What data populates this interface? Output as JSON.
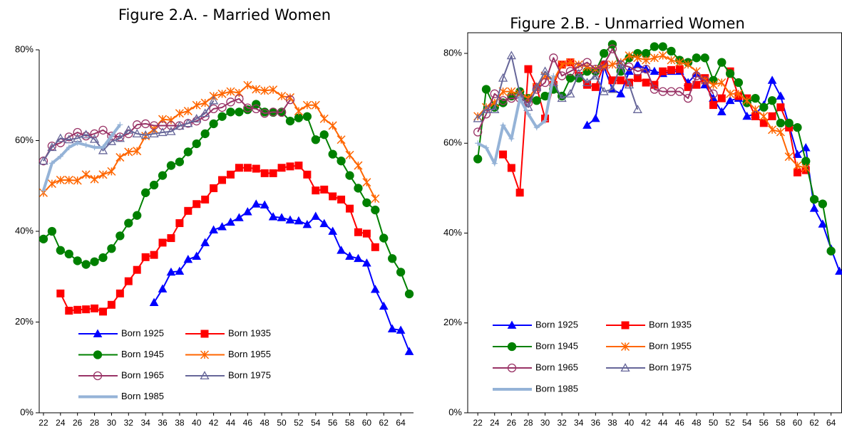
{
  "chart_data": [
    {
      "type": "line",
      "title": "Figure 2.A. - Married Women",
      "xlim": [
        21.5,
        65.5
      ],
      "xticks": [
        22,
        24,
        26,
        28,
        30,
        32,
        34,
        36,
        38,
        40,
        42,
        44,
        46,
        48,
        50,
        52,
        54,
        56,
        58,
        60,
        62,
        64
      ],
      "ylim": [
        0,
        80
      ],
      "yticks": [
        {
          "value": 0,
          "label": "0%"
        },
        {
          "value": 20,
          "label": "20%"
        },
        {
          "value": 40,
          "label": "40%"
        },
        {
          "value": 60,
          "label": "60%"
        },
        {
          "value": 80,
          "label": "80%"
        }
      ],
      "frame": false,
      "legend": "lower left",
      "series": [
        {
          "name": "Born 1925",
          "color": "#0000ff",
          "marker": "triangle",
          "line_width": 2,
          "x": [
            35,
            36,
            37,
            38,
            39,
            40,
            41,
            42,
            43,
            44,
            45,
            46,
            47,
            48,
            49,
            50,
            51,
            52,
            53,
            54,
            55,
            56,
            57,
            58,
            59,
            60,
            61,
            62,
            63,
            64,
            65
          ],
          "values": [
            24.3,
            27.3,
            31,
            31.2,
            33.8,
            34.5,
            37.5,
            40.3,
            41,
            42,
            43,
            44.3,
            46,
            45.8,
            43.2,
            43,
            42.5,
            42.3,
            41.5,
            43.3,
            41.7,
            40,
            35.8,
            34.5,
            34,
            33,
            27.2,
            23.5,
            18.5,
            18.2,
            13.5
          ]
        },
        {
          "name": "Born 1935",
          "color": "#ff0000",
          "marker": "square",
          "line_width": 2,
          "x": [
            24,
            25,
            26,
            27,
            28,
            29,
            30,
            31,
            32,
            33,
            34,
            35,
            36,
            37,
            38,
            39,
            40,
            41,
            42,
            43,
            44,
            45,
            46,
            47,
            48,
            49,
            50,
            51,
            52,
            53,
            54,
            55,
            56,
            57,
            58,
            59,
            60,
            61
          ],
          "values": [
            26.3,
            22.5,
            22.7,
            22.8,
            23,
            22.3,
            23.8,
            26.3,
            29,
            31.5,
            34.3,
            34.8,
            37.5,
            38.5,
            41.8,
            44.5,
            46,
            47,
            49.5,
            51.3,
            52.5,
            54,
            54,
            53.8,
            52.8,
            52.8,
            54,
            54.3,
            54.5,
            52.5,
            49,
            49.2,
            47.7,
            47,
            45,
            39.8,
            39.5,
            36.5
          ]
        },
        {
          "name": "Born 1945",
          "color": "#008000",
          "marker": "circle",
          "line_width": 2,
          "x": [
            22,
            23,
            24,
            25,
            26,
            27,
            28,
            29,
            30,
            31,
            32,
            33,
            34,
            35,
            36,
            37,
            38,
            39,
            40,
            41,
            42,
            43,
            44,
            45,
            46,
            47,
            48,
            49,
            50,
            51,
            52,
            53,
            54,
            55,
            56,
            57,
            58,
            59,
            60,
            61,
            62,
            63,
            64,
            65
          ],
          "values": [
            38.3,
            40,
            35.8,
            35,
            33.5,
            32.7,
            33.3,
            34.2,
            36.2,
            39,
            41.8,
            43.5,
            48.5,
            50.2,
            52.3,
            54.5,
            55.3,
            57.5,
            59.3,
            61.5,
            63.7,
            65.3,
            66.3,
            66.3,
            66.8,
            68,
            66.3,
            66.2,
            66.3,
            64.3,
            65,
            65.3,
            60.2,
            61.3,
            57,
            55.5,
            52.3,
            49.5,
            46.3,
            44.7,
            38.5,
            34,
            31,
            26.2
          ]
        },
        {
          "name": "Born 1955",
          "color": "#ff6600",
          "marker": "star",
          "line_width": 2,
          "x": [
            22,
            23,
            24,
            25,
            26,
            27,
            28,
            29,
            30,
            31,
            32,
            33,
            34,
            35,
            36,
            37,
            38,
            39,
            40,
            41,
            42,
            43,
            44,
            45,
            46,
            47,
            48,
            49,
            50,
            51,
            52,
            53,
            54,
            55,
            56,
            57,
            58,
            59,
            60,
            61
          ],
          "values": [
            48.5,
            50.5,
            51.3,
            51.3,
            51.2,
            52.5,
            51.5,
            52.5,
            53.2,
            56.3,
            57.5,
            57.7,
            61,
            62.5,
            64.7,
            64.5,
            66,
            66.5,
            67.8,
            68.3,
            69.8,
            70.3,
            70.8,
            70.5,
            72.2,
            71.3,
            71,
            71.2,
            69.8,
            69.5,
            66.5,
            67.8,
            67.8,
            64.8,
            63.3,
            60.2,
            56.8,
            54.5,
            50.8,
            47.2
          ]
        },
        {
          "name": "Born  1965",
          "color": "#993366",
          "marker": "circle-open",
          "line_width": 2,
          "x": [
            22,
            23,
            24,
            25,
            26,
            27,
            28,
            29,
            30,
            31,
            32,
            33,
            34,
            35,
            36,
            37,
            38,
            39,
            40,
            41,
            42,
            43,
            44,
            45,
            46,
            47,
            48,
            49,
            50,
            51
          ],
          "values": [
            55.5,
            58.8,
            59.5,
            60.8,
            61.8,
            61,
            61.5,
            62.3,
            61,
            60.8,
            61.5,
            63.5,
            63.7,
            63.3,
            63.3,
            63.3,
            63.3,
            63.8,
            64.3,
            65.3,
            67,
            67.3,
            68.5,
            69.2,
            67.2,
            67,
            66,
            66.3,
            66.2,
            69
          ]
        },
        {
          "name": "Born 1975",
          "color": "#666699",
          "marker": "triangle-open",
          "line_width": 2,
          "x": [
            22,
            23,
            24,
            25,
            26,
            27,
            28,
            29,
            30,
            31,
            32,
            33,
            34,
            35,
            36,
            37,
            38,
            39,
            40,
            41,
            42
          ],
          "values": [
            55.5,
            58.5,
            60.5,
            60.2,
            60.5,
            61.3,
            60.3,
            57.8,
            59.8,
            60.5,
            62.3,
            61.5,
            61.2,
            61.5,
            61.8,
            62,
            63.2,
            63.8,
            64.8,
            66,
            68.8
          ]
        },
        {
          "name": "Born 1985",
          "color": "#95b3d7",
          "marker": "plus",
          "line_width": 4,
          "x": [
            22,
            23,
            24,
            25,
            26,
            27,
            28,
            29,
            30,
            31
          ],
          "values": [
            49,
            55,
            56.5,
            58.5,
            59.5,
            59,
            58.5,
            58.5,
            61,
            63.5
          ]
        }
      ]
    },
    {
      "type": "line",
      "title": "Figure 2.B. - Unmarried Women",
      "xlim": [
        20.8,
        65.3
      ],
      "xticks": [
        22,
        24,
        26,
        28,
        30,
        32,
        34,
        36,
        38,
        40,
        42,
        44,
        46,
        48,
        50,
        52,
        54,
        56,
        58,
        60,
        62,
        64
      ],
      "ylim": [
        0,
        80
      ],
      "yticks": [
        {
          "value": 0,
          "label": "0%"
        },
        {
          "value": 20,
          "label": "20%"
        },
        {
          "value": 40,
          "label": "40%"
        },
        {
          "value": 60,
          "label": "60%"
        },
        {
          "value": 80,
          "label": "80%"
        }
      ],
      "frame": true,
      "legend": "lower left",
      "series": [
        {
          "name": "Born 1925",
          "color": "#0000ff",
          "marker": "triangle",
          "line_width": 2,
          "x": [
            35,
            36,
            37,
            38,
            39,
            40,
            41,
            42,
            43,
            44,
            45,
            46,
            47,
            48,
            49,
            50,
            51,
            52,
            53,
            54,
            55,
            56,
            57,
            58,
            59,
            60,
            61,
            62,
            63,
            64,
            65
          ],
          "values": [
            64,
            65.5,
            77,
            72,
            71,
            76,
            77.5,
            76.5,
            76,
            75.5,
            76,
            76,
            73.5,
            75.5,
            73,
            70,
            67,
            69.5,
            70,
            66,
            66.5,
            68.5,
            74,
            70.5,
            64,
            57.5,
            59,
            45.5,
            42,
            36.5,
            31.5
          ]
        },
        {
          "name": "Born 1935",
          "color": "#ff0000",
          "marker": "square",
          "line_width": 2,
          "x": [
            25,
            26,
            27,
            28,
            29,
            30,
            31,
            32,
            33,
            34,
            35,
            36,
            37,
            38,
            39,
            40,
            41,
            42,
            43,
            44,
            45,
            46,
            47,
            48,
            49,
            50,
            51,
            52,
            53,
            54,
            55,
            56,
            57,
            58,
            59,
            60,
            61
          ],
          "values": [
            57.5,
            54.5,
            49,
            76.5,
            72.5,
            65.5,
            73,
            77.5,
            78,
            75,
            73,
            72.5,
            77.5,
            74,
            74,
            73.5,
            74.5,
            73.5,
            73,
            76,
            76.3,
            76.5,
            72.5,
            73,
            74.5,
            68.5,
            70,
            76,
            70.5,
            70,
            66,
            64.5,
            66,
            68,
            63.5,
            53.5,
            54
          ]
        },
        {
          "name": "Born 1945",
          "color": "#008000",
          "marker": "circle",
          "line_width": 2,
          "x": [
            22,
            23,
            24,
            25,
            26,
            27,
            28,
            29,
            30,
            31,
            32,
            33,
            34,
            35,
            36,
            37,
            38,
            39,
            40,
            41,
            42,
            43,
            44,
            45,
            46,
            47,
            48,
            49,
            50,
            51,
            52,
            53,
            54,
            55,
            56,
            57,
            58,
            59,
            60,
            61,
            62,
            63,
            64
          ],
          "values": [
            56.5,
            72,
            68,
            69,
            70.5,
            71.5,
            70,
            69.5,
            70.5,
            72,
            70.5,
            74.5,
            74.5,
            76,
            76,
            80,
            82,
            76,
            79,
            80,
            80,
            81.5,
            81.5,
            80.5,
            78.5,
            78,
            79,
            79,
            74,
            78,
            75.5,
            73.5,
            69,
            70,
            68,
            69.5,
            64.5,
            64.5,
            63.5,
            56,
            47.5,
            46.5,
            36
          ]
        },
        {
          "name": "Born 1955",
          "color": "#ff6600",
          "marker": "star",
          "line_width": 2,
          "x": [
            22,
            23,
            24,
            25,
            26,
            27,
            28,
            29,
            30,
            31,
            32,
            33,
            34,
            35,
            36,
            37,
            38,
            39,
            40,
            41,
            42,
            43,
            44,
            45,
            46,
            47,
            48,
            49,
            50,
            51,
            52,
            53,
            54,
            55,
            56,
            57,
            58,
            59,
            60,
            61
          ],
          "values": [
            66,
            68,
            69,
            71.5,
            71.5,
            71,
            70,
            72.5,
            75,
            74,
            77.5,
            78,
            77.5,
            77,
            76.5,
            77,
            77.5,
            78,
            79.5,
            79,
            78.5,
            79,
            79.5,
            78.5,
            78,
            77.5,
            76,
            74,
            73,
            73.5,
            71,
            71,
            69.5,
            67.5,
            66,
            63,
            62.5,
            57,
            55,
            54.5
          ]
        },
        {
          "name": "Born  1965",
          "color": "#993366",
          "marker": "circle-open",
          "line_width": 2,
          "x": [
            22,
            23,
            24,
            25,
            26,
            27,
            28,
            29,
            30,
            31,
            32,
            33,
            34,
            35,
            36,
            37,
            38,
            39,
            40,
            41,
            42,
            43,
            44,
            45,
            46,
            47,
            48,
            49,
            50
          ],
          "values": [
            62.5,
            66.5,
            71,
            69.5,
            70,
            70,
            69,
            72,
            73.5,
            79,
            75,
            76,
            77,
            78,
            76.5,
            77.5,
            81,
            77.5,
            77,
            76,
            76.5,
            72,
            71.5,
            71.5,
            71.5,
            70,
            75,
            74,
            71
          ]
        },
        {
          "name": "Born 1975",
          "color": "#666699",
          "marker": "triangle-open",
          "line_width": 2,
          "x": [
            22,
            23,
            24,
            25,
            26,
            27,
            28,
            29,
            30,
            31,
            32,
            33,
            34,
            35,
            36,
            37,
            38,
            39,
            40,
            41
          ],
          "values": [
            65.5,
            67.5,
            67.5,
            74.5,
            79.5,
            71,
            68,
            72.5,
            76,
            73.5,
            70,
            71,
            75.5,
            73.5,
            75,
            71.5,
            72,
            77.5,
            73,
            67.5
          ]
        },
        {
          "name": "Born 1985",
          "color": "#95b3d7",
          "marker": "plus",
          "line_width": 4,
          "x": [
            22,
            23,
            24,
            25,
            26,
            27,
            28,
            29,
            30,
            31
          ],
          "values": [
            60,
            59,
            55.5,
            64,
            61,
            70,
            66.5,
            63.5,
            65,
            75
          ]
        }
      ]
    }
  ]
}
